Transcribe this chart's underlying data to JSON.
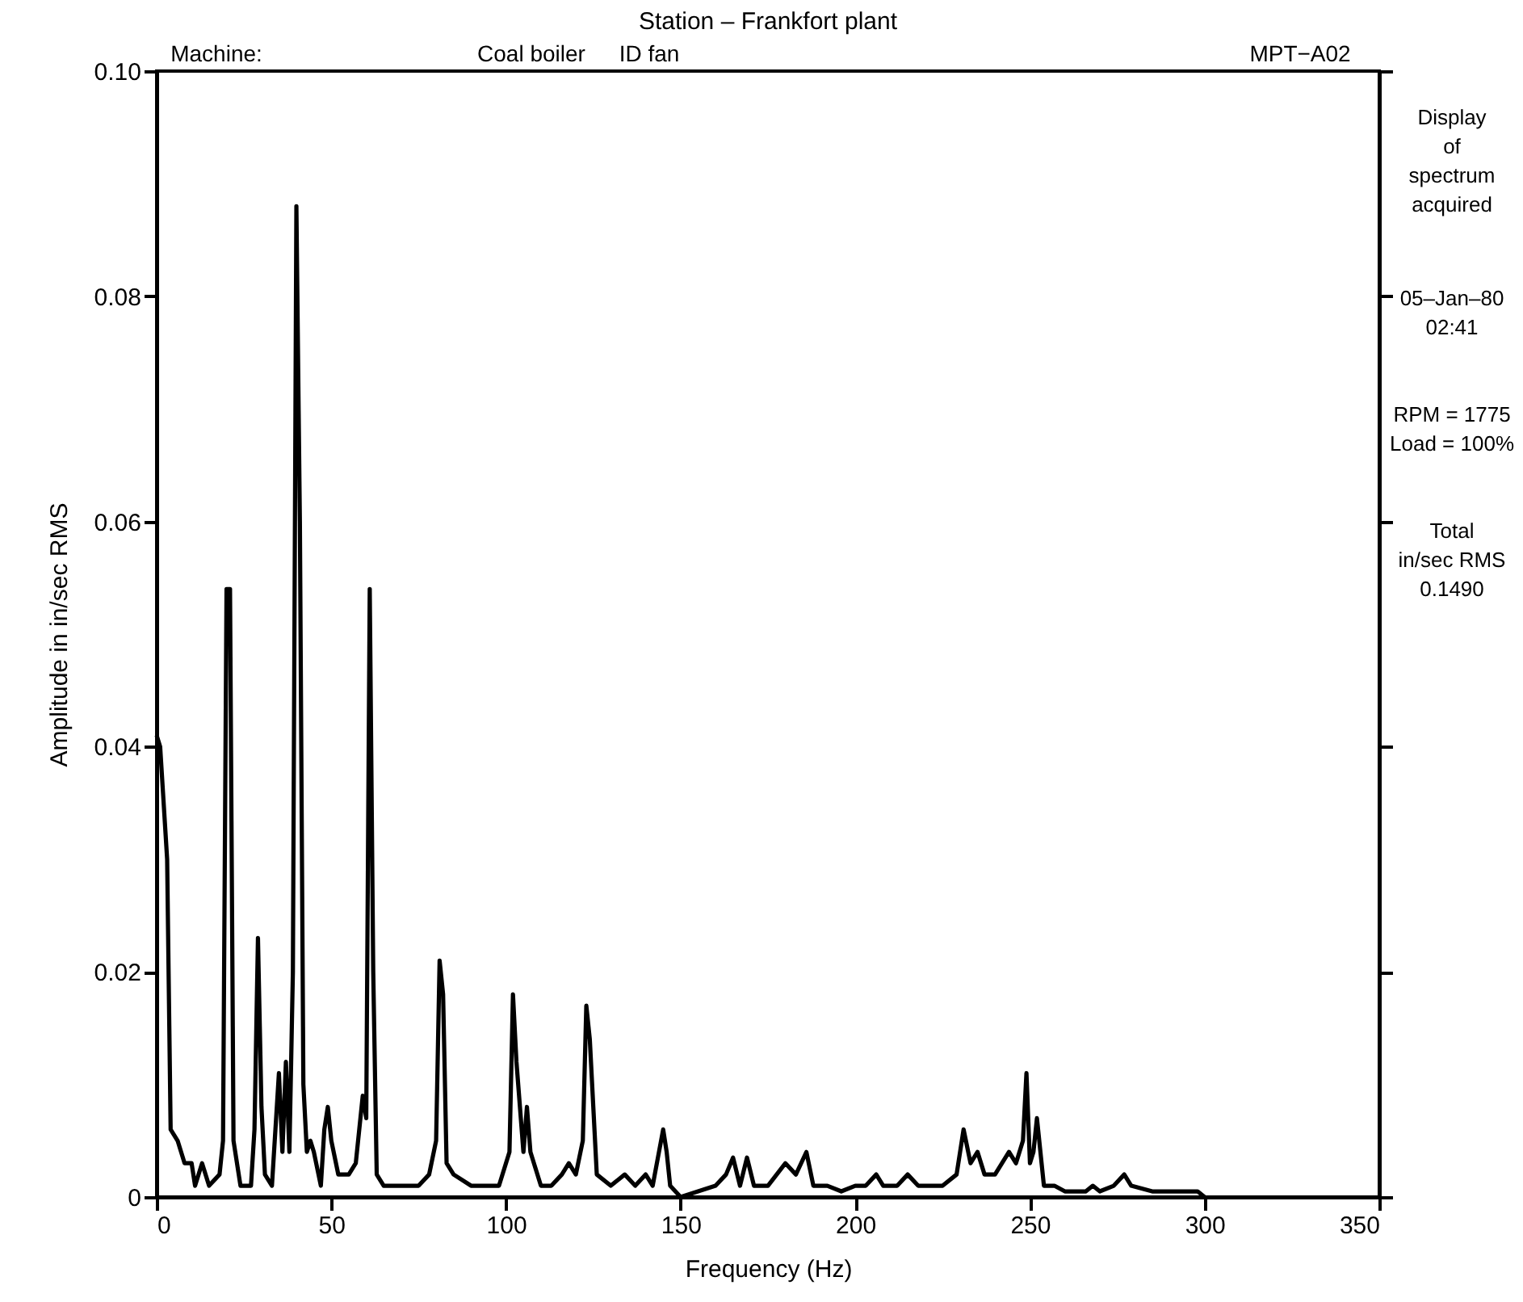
{
  "chart_data": {
    "type": "line",
    "title": "Station – Frankfort plant",
    "xlabel": "Frequency (Hz)",
    "ylabel": "Amplitude in in/sec RMS",
    "annotations": [
      "Machine:",
      "Coal boiler",
      "ID fan",
      "MPT−A02",
      "Display\nof\nspectrum\nacquired",
      "05–Jan–80\n02:41",
      "RPM = 1775\nLoad = 100%",
      "Total\nin/sec RMS\n0.1490"
    ],
    "xlim": [
      0,
      350
    ],
    "xticks": [
      0,
      50,
      100,
      150,
      200,
      250,
      300,
      350
    ],
    "ylim": [
      0,
      0.1
    ],
    "yticks": [
      {
        "value": 0,
        "label": "0"
      },
      {
        "value": 0.02,
        "label": "0.02"
      },
      {
        "value": 0.04,
        "label": "0.04"
      },
      {
        "value": 0.06,
        "label": "0.06"
      },
      {
        "value": 0.08,
        "label": "0.08"
      },
      {
        "value": 0.1,
        "label": "0.10"
      }
    ],
    "grid": false,
    "marker": "none",
    "line_style": "solid",
    "series": [
      {
        "color": "#000000",
        "x": [
          0,
          1,
          3,
          4,
          6,
          8,
          10,
          11,
          13,
          15,
          18,
          19,
          20,
          21,
          22,
          24,
          27,
          28,
          29,
          30,
          31,
          33,
          35,
          36,
          37,
          38,
          39,
          40,
          41,
          42,
          43,
          44,
          45,
          47,
          48,
          49,
          50,
          52,
          55,
          57,
          59,
          60,
          61,
          62,
          63,
          65,
          70,
          75,
          78,
          80,
          81,
          82,
          83,
          85,
          90,
          95,
          98,
          101,
          102,
          103,
          105,
          106,
          107,
          110,
          113,
          116,
          118,
          120,
          122,
          123,
          124,
          126,
          130,
          134,
          137,
          140,
          142,
          145,
          146,
          147,
          150,
          155,
          160,
          163,
          165,
          167,
          169,
          171,
          175,
          180,
          183,
          186,
          188,
          192,
          196,
          200,
          203,
          206,
          208,
          212,
          215,
          218,
          222,
          225,
          229,
          231,
          233,
          235,
          237,
          240,
          242,
          244,
          246,
          248,
          249,
          250,
          251,
          252,
          254,
          257,
          260,
          263,
          266,
          268,
          270,
          274,
          277,
          279,
          285,
          290,
          295,
          298,
          300
        ],
        "values": [
          0.041,
          0.04,
          0.03,
          0.006,
          0.005,
          0.003,
          0.003,
          0.001,
          0.003,
          0.001,
          0.002,
          0.005,
          0.054,
          0.054,
          0.005,
          0.001,
          0.001,
          0.006,
          0.023,
          0.008,
          0.002,
          0.001,
          0.011,
          0.004,
          0.012,
          0.004,
          0.02,
          0.088,
          0.06,
          0.01,
          0.004,
          0.005,
          0.004,
          0.001,
          0.006,
          0.008,
          0.005,
          0.002,
          0.002,
          0.003,
          0.009,
          0.007,
          0.054,
          0.02,
          0.002,
          0.001,
          0.001,
          0.001,
          0.002,
          0.005,
          0.021,
          0.018,
          0.003,
          0.002,
          0.001,
          0.001,
          0.001,
          0.004,
          0.018,
          0.012,
          0.004,
          0.008,
          0.004,
          0.001,
          0.001,
          0.002,
          0.003,
          0.002,
          0.005,
          0.017,
          0.014,
          0.002,
          0.001,
          0.002,
          0.001,
          0.002,
          0.001,
          0.006,
          0.004,
          0.001,
          0,
          0.0005,
          0.001,
          0.002,
          0.0035,
          0.001,
          0.0035,
          0.001,
          0.001,
          0.003,
          0.002,
          0.004,
          0.001,
          0.001,
          0.0005,
          0.001,
          0.001,
          0.002,
          0.001,
          0.001,
          0.002,
          0.001,
          0.001,
          0.001,
          0.002,
          0.006,
          0.003,
          0.004,
          0.002,
          0.002,
          0.003,
          0.004,
          0.003,
          0.005,
          0.011,
          0.003,
          0.004,
          0.007,
          0.001,
          0.001,
          0.0005,
          0.0005,
          0.0005,
          0.001,
          0.0005,
          0.001,
          0.002,
          0.001,
          0.0005,
          0.0005,
          0.0005,
          0.0005,
          0
        ]
      }
    ]
  }
}
